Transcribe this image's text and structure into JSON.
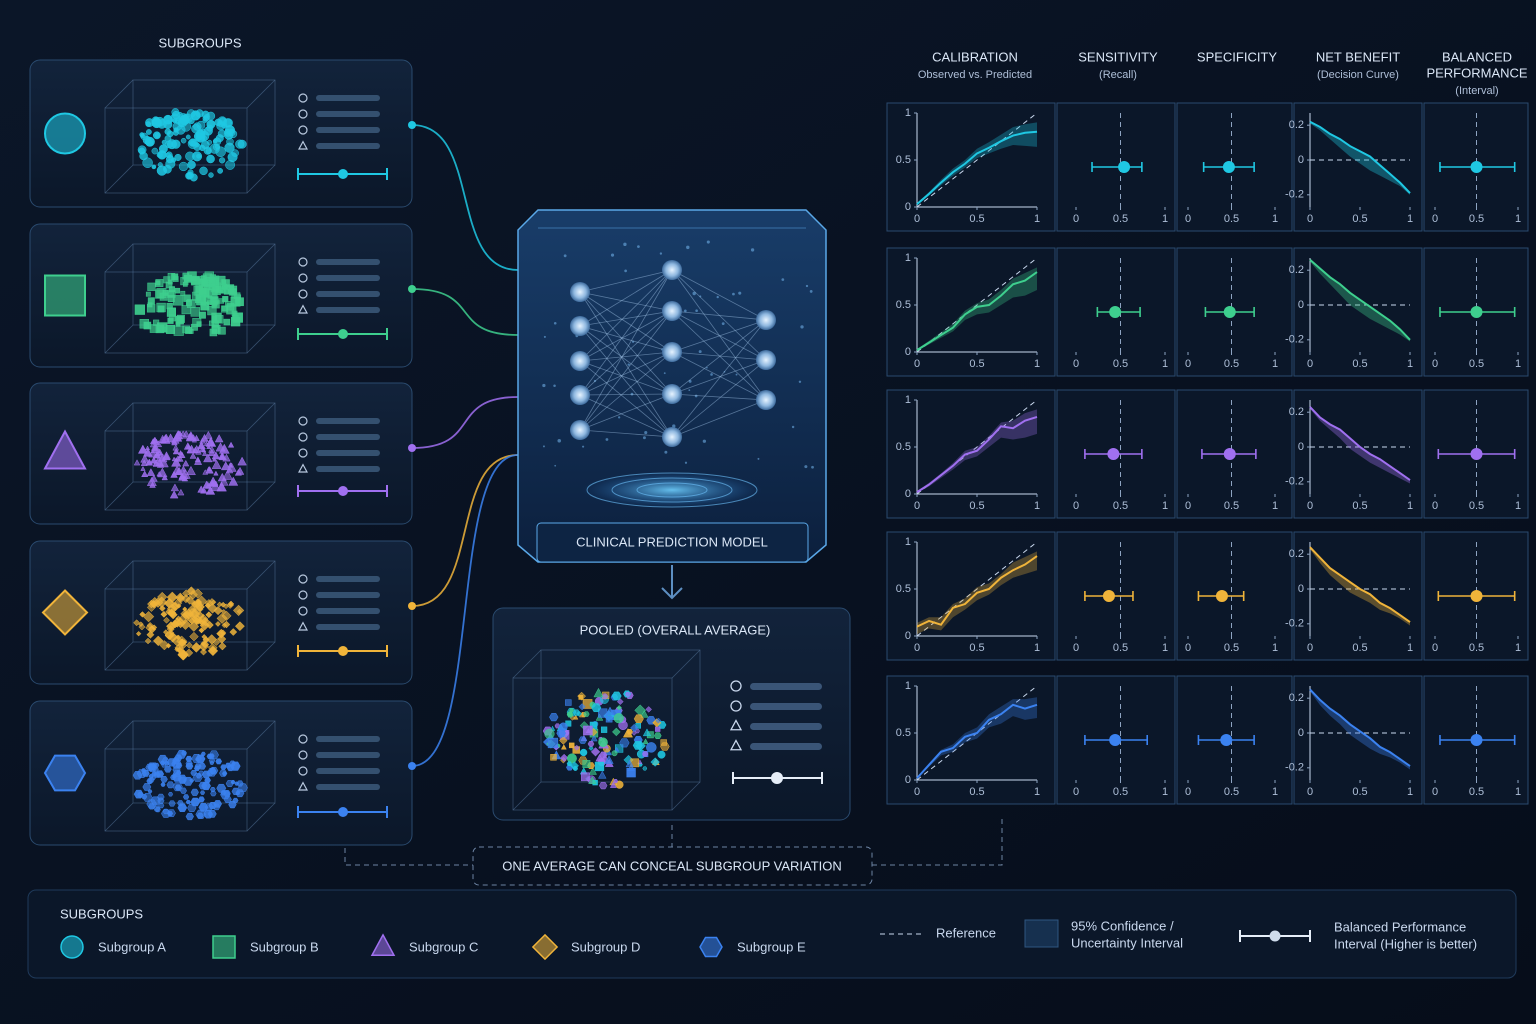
{
  "subgroups_title": "SUBGROUPS",
  "model_label": "CLINICAL PREDICTION MODEL",
  "pooled_title": "POOLED (OVERALL AVERAGE)",
  "note": "ONE AVERAGE CAN CONCEAL SUBGROUP VARIATION",
  "columns": [
    {
      "title_lines": [
        "CALIBRATION"
      ],
      "subtitle": "Observed vs. Predicted"
    },
    {
      "title_lines": [
        "SENSITIVITY"
      ],
      "subtitle": "(Recall)"
    },
    {
      "title_lines": [
        "SPECIFICITY"
      ]
    },
    {
      "title_lines": [
        "NET BENEFIT"
      ],
      "subtitle": "(Decision Curve)"
    },
    {
      "title_lines": [
        "BALANCED",
        "PERFORMANCE"
      ],
      "subtitle": "(Interval)"
    }
  ],
  "axes": {
    "calibration": {
      "x": [
        0,
        0.1,
        0.2,
        0.3,
        0.4,
        0.5,
        0.6,
        0.7,
        0.8,
        0.9,
        1
      ],
      "xlim": [
        0,
        1
      ],
      "ylim": [
        0,
        1
      ],
      "xticks": [
        0,
        0.5,
        1
      ],
      "yticks": [
        0,
        0.5,
        1
      ]
    },
    "net_benefit": {
      "x": [
        0,
        0.1,
        0.2,
        0.3,
        0.4,
        0.5,
        0.6,
        0.7,
        0.8,
        0.9,
        1
      ],
      "xlim": [
        0,
        1
      ],
      "ylim": [
        -0.27,
        0.27
      ],
      "xticks": [
        0,
        0.5,
        1
      ],
      "yticks": [
        -0.2,
        0,
        0.2
      ]
    },
    "interval": {
      "xlim": [
        0,
        1
      ],
      "xticks": [
        0,
        0.5,
        1
      ]
    }
  },
  "subgroups": [
    {
      "name": "Subgroup A",
      "color": "#1fc8e3",
      "shape": "circle",
      "calibration": {
        "values": [
          0.03,
          0.14,
          0.26,
          0.37,
          0.46,
          0.57,
          0.63,
          0.7,
          0.76,
          0.79,
          0.8
        ],
        "lower": [
          0.02,
          0.12,
          0.23,
          0.33,
          0.42,
          0.52,
          0.57,
          0.62,
          0.66,
          0.65,
          0.64
        ],
        "upper": [
          0.04,
          0.16,
          0.29,
          0.41,
          0.5,
          0.62,
          0.69,
          0.77,
          0.85,
          0.88,
          0.9
        ]
      },
      "net_benefit": {
        "values": [
          0.22,
          0.19,
          0.15,
          0.12,
          0.08,
          0.05,
          0.02,
          -0.03,
          -0.08,
          -0.13,
          -0.19
        ],
        "lower": [
          0.21,
          0.17,
          0.12,
          0.07,
          0.02,
          -0.02,
          -0.06,
          -0.09,
          -0.12,
          -0.15,
          -0.2
        ]
      },
      "sensitivity": {
        "value": 0.54,
        "low": 0.18,
        "high": 0.74
      },
      "specificity": {
        "value": 0.47,
        "low": 0.18,
        "high": 0.76
      },
      "balanced": {
        "value": 0.5,
        "low": 0.06,
        "high": 0.96
      }
    },
    {
      "name": "Subgroup B",
      "color": "#3ecf8e",
      "shape": "square",
      "calibration": {
        "values": [
          0.02,
          0.1,
          0.18,
          0.26,
          0.4,
          0.48,
          0.5,
          0.6,
          0.72,
          0.76,
          0.85
        ],
        "lower": [
          0.01,
          0.08,
          0.15,
          0.22,
          0.34,
          0.4,
          0.42,
          0.5,
          0.58,
          0.6,
          0.66
        ],
        "upper": [
          0.03,
          0.12,
          0.21,
          0.3,
          0.44,
          0.52,
          0.56,
          0.66,
          0.78,
          0.84,
          0.9
        ]
      },
      "net_benefit": {
        "values": [
          0.26,
          0.21,
          0.16,
          0.12,
          0.07,
          0.03,
          -0.01,
          -0.05,
          -0.09,
          -0.14,
          -0.2
        ],
        "lower": [
          0.25,
          0.18,
          0.12,
          0.06,
          0.0,
          -0.04,
          -0.08,
          -0.11,
          -0.14,
          -0.17,
          -0.21
        ]
      },
      "sensitivity": {
        "value": 0.44,
        "low": 0.24,
        "high": 0.72
      },
      "specificity": {
        "value": 0.48,
        "low": 0.2,
        "high": 0.76
      },
      "balanced": {
        "value": 0.5,
        "low": 0.06,
        "high": 0.96
      }
    },
    {
      "name": "Subgroup C",
      "color": "#a070f0",
      "shape": "triangle",
      "calibration": {
        "values": [
          0.02,
          0.1,
          0.2,
          0.3,
          0.42,
          0.46,
          0.58,
          0.72,
          0.7,
          0.78,
          0.82
        ],
        "lower": [
          0.01,
          0.08,
          0.17,
          0.26,
          0.36,
          0.4,
          0.5,
          0.6,
          0.58,
          0.6,
          0.64
        ],
        "upper": [
          0.03,
          0.12,
          0.22,
          0.33,
          0.46,
          0.5,
          0.62,
          0.76,
          0.78,
          0.86,
          0.9
        ]
      },
      "net_benefit": {
        "values": [
          0.23,
          0.17,
          0.13,
          0.1,
          0.05,
          0.0,
          -0.04,
          -0.07,
          -0.11,
          -0.15,
          -0.19
        ],
        "lower": [
          0.22,
          0.15,
          0.1,
          0.05,
          -0.01,
          -0.05,
          -0.09,
          -0.12,
          -0.15,
          -0.18,
          -0.21
        ]
      },
      "sensitivity": {
        "value": 0.42,
        "low": 0.1,
        "high": 0.74
      },
      "specificity": {
        "value": 0.48,
        "low": 0.16,
        "high": 0.78
      },
      "balanced": {
        "value": 0.5,
        "low": 0.04,
        "high": 0.96
      }
    },
    {
      "name": "Subgroup D",
      "color": "#f0b43a",
      "shape": "diamond",
      "calibration": {
        "values": [
          0.1,
          0.16,
          0.12,
          0.3,
          0.34,
          0.46,
          0.5,
          0.62,
          0.7,
          0.76,
          0.85
        ],
        "lower": [
          0.02,
          0.08,
          0.06,
          0.2,
          0.28,
          0.38,
          0.44,
          0.54,
          0.62,
          0.66,
          0.7
        ],
        "upper": [
          0.14,
          0.2,
          0.2,
          0.34,
          0.4,
          0.52,
          0.56,
          0.66,
          0.78,
          0.84,
          0.9
        ]
      },
      "net_benefit": {
        "values": [
          0.24,
          0.18,
          0.12,
          0.08,
          0.04,
          0.0,
          -0.03,
          -0.08,
          -0.11,
          -0.15,
          -0.19
        ],
        "lower": [
          0.23,
          0.15,
          0.08,
          0.03,
          -0.02,
          -0.05,
          -0.08,
          -0.12,
          -0.14,
          -0.17,
          -0.21
        ]
      },
      "sensitivity": {
        "value": 0.37,
        "low": 0.1,
        "high": 0.64
      },
      "specificity": {
        "value": 0.39,
        "low": 0.12,
        "high": 0.64
      },
      "balanced": {
        "value": 0.5,
        "low": 0.04,
        "high": 0.96
      }
    },
    {
      "name": "Subgroup E",
      "color": "#3b82f0",
      "shape": "hexagon",
      "calibration": {
        "values": [
          0.02,
          0.16,
          0.3,
          0.34,
          0.46,
          0.5,
          0.64,
          0.7,
          0.8,
          0.76,
          0.8
        ],
        "lower": [
          0.01,
          0.14,
          0.26,
          0.3,
          0.4,
          0.44,
          0.56,
          0.6,
          0.68,
          0.64,
          0.66
        ],
        "upper": [
          0.03,
          0.18,
          0.32,
          0.38,
          0.5,
          0.56,
          0.7,
          0.78,
          0.86,
          0.86,
          0.88
        ]
      },
      "net_benefit": {
        "values": [
          0.25,
          0.19,
          0.14,
          0.1,
          0.05,
          0.01,
          -0.03,
          -0.08,
          -0.11,
          -0.15,
          -0.19
        ],
        "lower": [
          0.24,
          0.16,
          0.1,
          0.05,
          -0.01,
          -0.05,
          -0.09,
          -0.12,
          -0.14,
          -0.17,
          -0.21
        ]
      },
      "sensitivity": {
        "value": 0.44,
        "low": 0.1,
        "high": 0.8
      },
      "specificity": {
        "value": 0.44,
        "low": 0.12,
        "high": 0.76
      },
      "balanced": {
        "value": 0.5,
        "low": 0.06,
        "high": 0.96
      }
    }
  ],
  "legend": {
    "title": "SUBGROUPS",
    "reference": "Reference",
    "ci_label": [
      "95% Confidence /",
      "Uncertainty Interval"
    ],
    "balanced_label": [
      "Balanced Performance",
      "Interval (Higher is better)"
    ]
  }
}
